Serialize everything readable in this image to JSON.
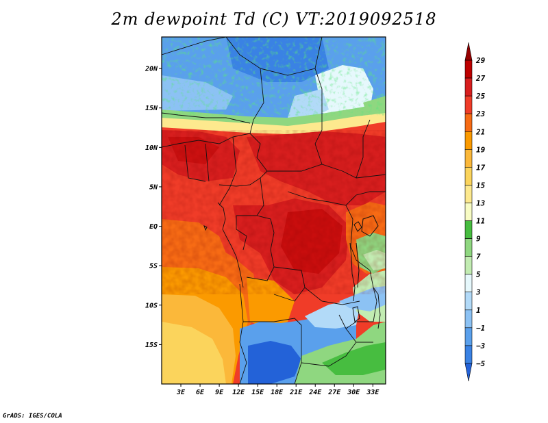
{
  "title": "2m dewpoint Td (C) VT:2019092518",
  "credit": "GrADS: IGES/COLA",
  "chart_data": {
    "type": "heatmap",
    "title": "2m dewpoint Td (C) VT:2019092518",
    "variable": "2m dewpoint Td",
    "units": "C",
    "valid_time": "2019092518",
    "xlim": [
      0,
      35
    ],
    "ylim": [
      -20,
      24
    ],
    "x_ticks": [
      {
        "value": 3,
        "label": "3E"
      },
      {
        "value": 6,
        "label": "6E"
      },
      {
        "value": 9,
        "label": "9E"
      },
      {
        "value": 12,
        "label": "12E"
      },
      {
        "value": 15,
        "label": "15E"
      },
      {
        "value": 18,
        "label": "18E"
      },
      {
        "value": 21,
        "label": "21E"
      },
      {
        "value": 24,
        "label": "24E"
      },
      {
        "value": 27,
        "label": "27E"
      },
      {
        "value": 30,
        "label": "30E"
      },
      {
        "value": 33,
        "label": "33E"
      }
    ],
    "y_ticks": [
      {
        "value": 20,
        "label": "20N"
      },
      {
        "value": 15,
        "label": "15N"
      },
      {
        "value": 10,
        "label": "10N"
      },
      {
        "value": 5,
        "label": "5N"
      },
      {
        "value": 0,
        "label": "EQ"
      },
      {
        "value": -5,
        "label": "5S"
      },
      {
        "value": -10,
        "label": "10S"
      },
      {
        "value": -15,
        "label": "15S"
      }
    ],
    "colorbar": {
      "levels": [
        "29",
        "27",
        "25",
        "23",
        "21",
        "19",
        "17",
        "15",
        "13",
        "11",
        "9",
        "7",
        "5",
        "3",
        "1",
        "−1",
        "−3",
        "−5"
      ],
      "colors": [
        "#960000",
        "#be0000",
        "#d81e1e",
        "#f03c28",
        "#f76b14",
        "#fb9a00",
        "#fbb83a",
        "#fbd45c",
        "#fde98e",
        "#f8fcc4",
        "#47bd40",
        "#8fd780",
        "#c2ecb2",
        "#e6f8fc",
        "#b2daf8",
        "#8cc2f4",
        "#5aa0ec",
        "#3a82e4",
        "#2362d8"
      ]
    }
  }
}
